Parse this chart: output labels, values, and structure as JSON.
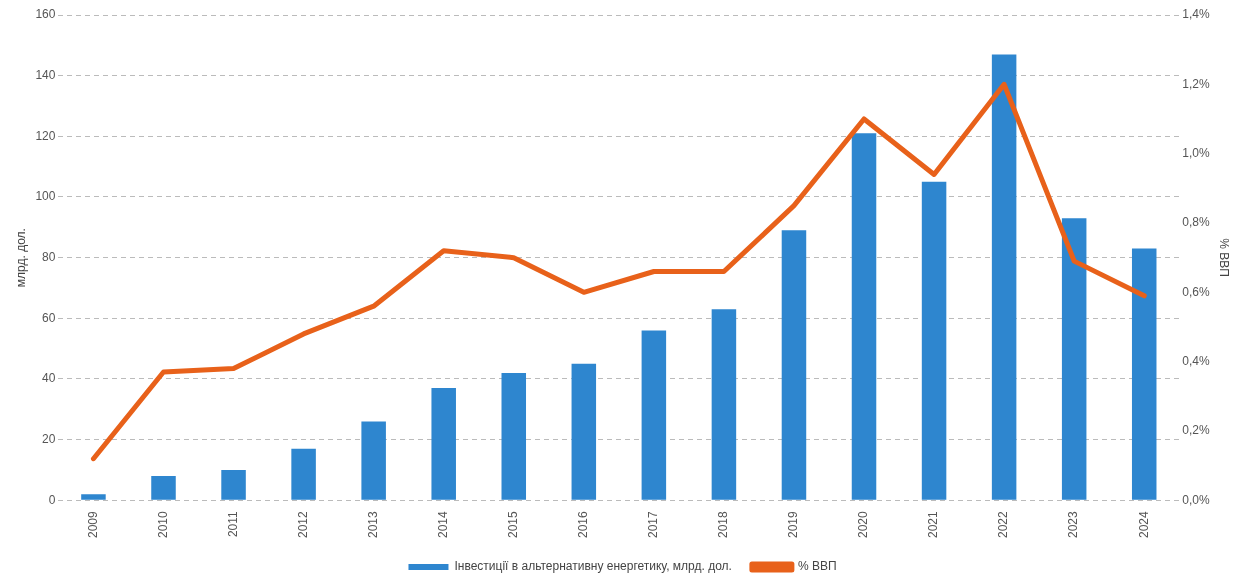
{
  "chart_data": {
    "type": "bar",
    "ylabel": "млрд. дол.",
    "y2label": "% ВВП",
    "categories": [
      "2009",
      "2010",
      "2011",
      "2012",
      "2013",
      "2014",
      "2015",
      "2016",
      "2017",
      "2018",
      "2019",
      "2020",
      "2021",
      "2022",
      "2023",
      "2024"
    ],
    "series": [
      {
        "name": "Інвестиції в альтернативну енергетику, млрд. дол.",
        "color": "#2e86cf",
        "values": [
          2,
          8,
          10,
          17,
          26,
          37,
          42,
          45,
          56,
          63,
          89,
          121,
          105,
          147,
          93,
          83
        ]
      },
      {
        "name": "% ВВП",
        "type": "line",
        "axis": "y2",
        "color": "#e8611a",
        "values": [
          0.12,
          0.37,
          0.38,
          0.48,
          0.56,
          0.72,
          0.7,
          0.6,
          0.66,
          0.66,
          0.85,
          1.1,
          0.94,
          1.2,
          0.69,
          0.59
        ]
      }
    ],
    "ylim": [
      0,
      160
    ],
    "yticks": [
      0,
      20,
      40,
      60,
      80,
      100,
      120,
      140,
      160
    ],
    "y2lim": [
      0,
      1.4
    ],
    "y2ticks": [
      {
        "value": 0,
        "label": "0,0%"
      },
      {
        "value": 0.2,
        "label": "0,2%"
      },
      {
        "value": 0.4,
        "label": "0,4%"
      },
      {
        "value": 0.6,
        "label": "0,6%"
      },
      {
        "value": 0.8,
        "label": "0,8%"
      },
      {
        "value": 1,
        "label": "1,0%"
      },
      {
        "value": 1.2,
        "label": "1,2%"
      },
      {
        "value": 1.4,
        "label": "1,4%"
      }
    ],
    "grid": "y",
    "legend": "bottom",
    "marker": "none",
    "line_style": "solid"
  }
}
